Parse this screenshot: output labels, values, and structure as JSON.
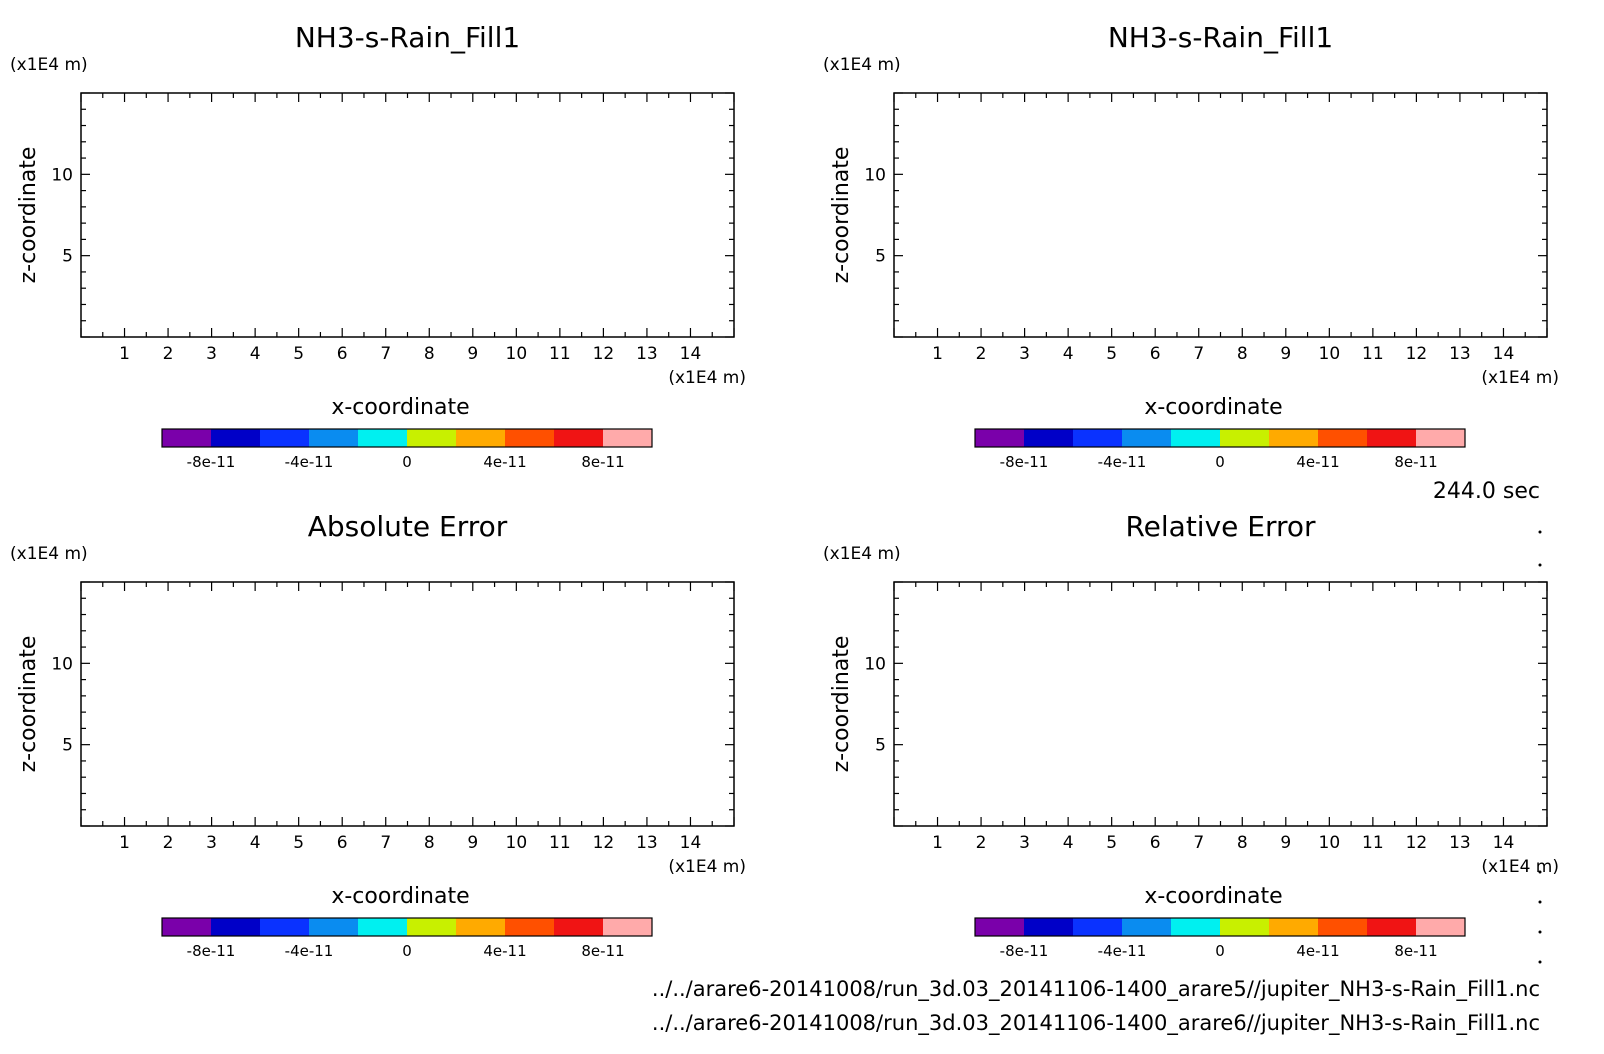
{
  "page": {
    "time_label": "244.0 sec",
    "file_paths": [
      "../../arare6-20141008/run_3d.03_20141106-1400_arare5//jupiter_NH3-s-Rain_Fill1.nc",
      "../../arare6-20141008/run_3d.03_20141106-1400_arare6//jupiter_NH3-s-Rain_Fill1.nc"
    ]
  },
  "chart_data": [
    {
      "type": "heatmap",
      "title": "NH3-s-Rain_Fill1",
      "xlabel": "x-coordinate",
      "ylabel": "z-coordinate",
      "x_unit": "(x1E4 m)",
      "y_unit": "(x1E4 m)",
      "xlim": [
        0,
        15
      ],
      "ylim": [
        0,
        15
      ],
      "x_ticks": [
        1,
        2,
        3,
        4,
        5,
        6,
        7,
        8,
        9,
        10,
        11,
        12,
        13,
        14
      ],
      "y_ticks": [
        5,
        10
      ],
      "colorbar": {
        "colors": [
          "#7a00aa",
          "#0000c8",
          "#0a32ff",
          "#0a8cf0",
          "#00f0f0",
          "#c8f000",
          "#ffaa00",
          "#ff5000",
          "#f01414",
          "#ffaaaa"
        ],
        "labels": [
          "-8e-11",
          "-4e-11",
          "0",
          "4e-11",
          "8e-11"
        ]
      }
    },
    {
      "type": "heatmap",
      "title": "NH3-s-Rain_Fill1",
      "xlabel": "x-coordinate",
      "ylabel": "z-coordinate",
      "x_unit": "(x1E4 m)",
      "y_unit": "(x1E4 m)",
      "xlim": [
        0,
        15
      ],
      "ylim": [
        0,
        15
      ],
      "x_ticks": [
        1,
        2,
        3,
        4,
        5,
        6,
        7,
        8,
        9,
        10,
        11,
        12,
        13,
        14
      ],
      "y_ticks": [
        5,
        10
      ],
      "colorbar": {
        "colors": [
          "#7a00aa",
          "#0000c8",
          "#0a32ff",
          "#0a8cf0",
          "#00f0f0",
          "#c8f000",
          "#ffaa00",
          "#ff5000",
          "#f01414",
          "#ffaaaa"
        ],
        "labels": [
          "-8e-11",
          "-4e-11",
          "0",
          "4e-11",
          "8e-11"
        ]
      }
    },
    {
      "type": "heatmap",
      "title": "Absolute Error",
      "xlabel": "x-coordinate",
      "ylabel": "z-coordinate",
      "x_unit": "(x1E4 m)",
      "y_unit": "(x1E4 m)",
      "xlim": [
        0,
        15
      ],
      "ylim": [
        0,
        15
      ],
      "x_ticks": [
        1,
        2,
        3,
        4,
        5,
        6,
        7,
        8,
        9,
        10,
        11,
        12,
        13,
        14
      ],
      "y_ticks": [
        5,
        10
      ],
      "colorbar": {
        "colors": [
          "#7a00aa",
          "#0000c8",
          "#0a32ff",
          "#0a8cf0",
          "#00f0f0",
          "#c8f000",
          "#ffaa00",
          "#ff5000",
          "#f01414",
          "#ffaaaa"
        ],
        "labels": [
          "-8e-11",
          "-4e-11",
          "0",
          "4e-11",
          "8e-11"
        ]
      }
    },
    {
      "type": "heatmap",
      "title": "Relative Error",
      "xlabel": "x-coordinate",
      "ylabel": "z-coordinate",
      "x_unit": "(x1E4 m)",
      "y_unit": "(x1E4 m)",
      "xlim": [
        0,
        15
      ],
      "ylim": [
        0,
        15
      ],
      "x_ticks": [
        1,
        2,
        3,
        4,
        5,
        6,
        7,
        8,
        9,
        10,
        11,
        12,
        13,
        14
      ],
      "y_ticks": [
        5,
        10
      ],
      "colorbar": {
        "colors": [
          "#7a00aa",
          "#0000c8",
          "#0a32ff",
          "#0a8cf0",
          "#00f0f0",
          "#c8f000",
          "#ffaa00",
          "#ff5000",
          "#f01414",
          "#ffaaaa"
        ],
        "labels": [
          "-8e-11",
          "-4e-11",
          "0",
          "4e-11",
          "8e-11"
        ]
      }
    }
  ]
}
